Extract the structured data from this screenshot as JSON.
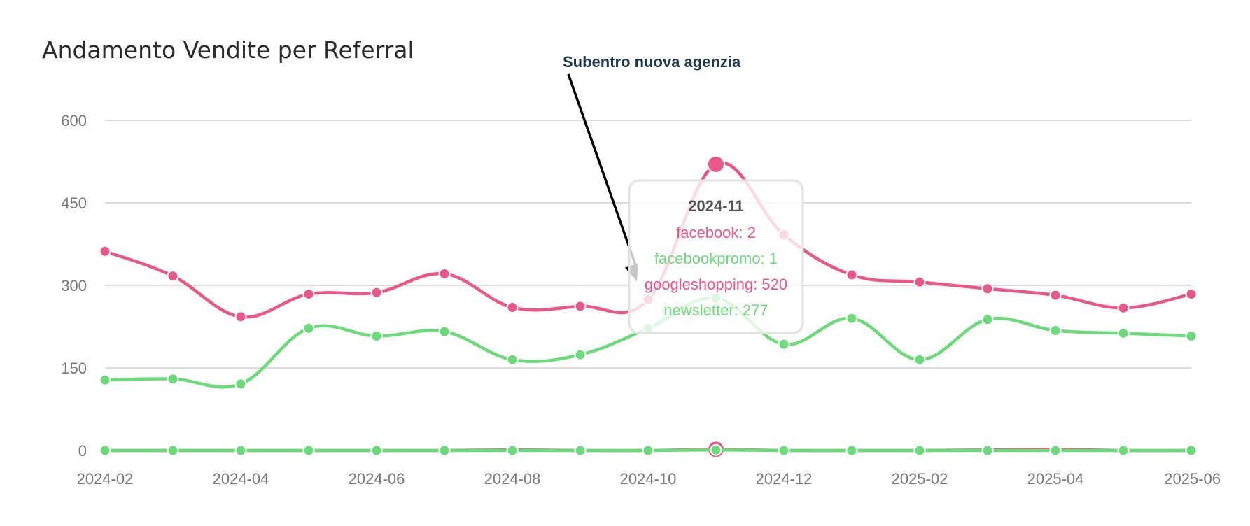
{
  "chart_data": {
    "type": "line",
    "title": "Andamento Vendite per Referral",
    "xlabel": "",
    "ylabel": "",
    "ylim": [
      0,
      600
    ],
    "y_ticks": [
      0,
      150,
      300,
      450,
      600
    ],
    "x": [
      "2024-02",
      "2024-03",
      "2024-04",
      "2024-05",
      "2024-06",
      "2024-07",
      "2024-08",
      "2024-09",
      "2024-10",
      "2024-11",
      "2024-12",
      "2025-01",
      "2025-02",
      "2025-03",
      "2025-04",
      "2025-05",
      "2025-06"
    ],
    "x_tick_labels": [
      "2024-02",
      "2024-04",
      "2024-06",
      "2024-08",
      "2024-10",
      "2024-12",
      "2025-02",
      "2025-04",
      "2025-06"
    ],
    "grid": true,
    "series": [
      {
        "name": "facebook",
        "color": "#e8578a",
        "values": [
          0,
          0,
          0,
          0,
          0,
          0,
          1,
          0,
          0,
          2,
          0,
          0,
          0,
          1,
          2,
          0,
          0
        ]
      },
      {
        "name": "facebookpromo",
        "color": "#6cd97a",
        "values": [
          0,
          0,
          0,
          0,
          0,
          0,
          0,
          0,
          0,
          1,
          0,
          0,
          0,
          0,
          0,
          0,
          0
        ]
      },
      {
        "name": "googleshopping",
        "color": "#e8578a",
        "values": [
          362,
          317,
          243,
          284,
          287,
          321,
          260,
          262,
          274,
          520,
          392,
          319,
          306,
          294,
          282,
          259,
          284
        ]
      },
      {
        "name": "newsletter",
        "color": "#6cd97a",
        "values": [
          128,
          130,
          121,
          222,
          208,
          216,
          165,
          174,
          222,
          277,
          193,
          240,
          165,
          238,
          218,
          213,
          208
        ]
      }
    ],
    "annotation": {
      "text": "Subentro nuova agenzia",
      "x": "2024-10",
      "y": 325
    },
    "tooltip": {
      "x": "2024-11",
      "title": "2024-11",
      "lines": [
        {
          "text": "facebook: 2",
          "color": "#e8578a"
        },
        {
          "text": "facebookpromo: 1",
          "color": "#6cd97a"
        },
        {
          "text": "googleshopping: 520",
          "color": "#e8578a"
        },
        {
          "text": "newsletter: 277",
          "color": "#6cd97a"
        }
      ]
    }
  }
}
